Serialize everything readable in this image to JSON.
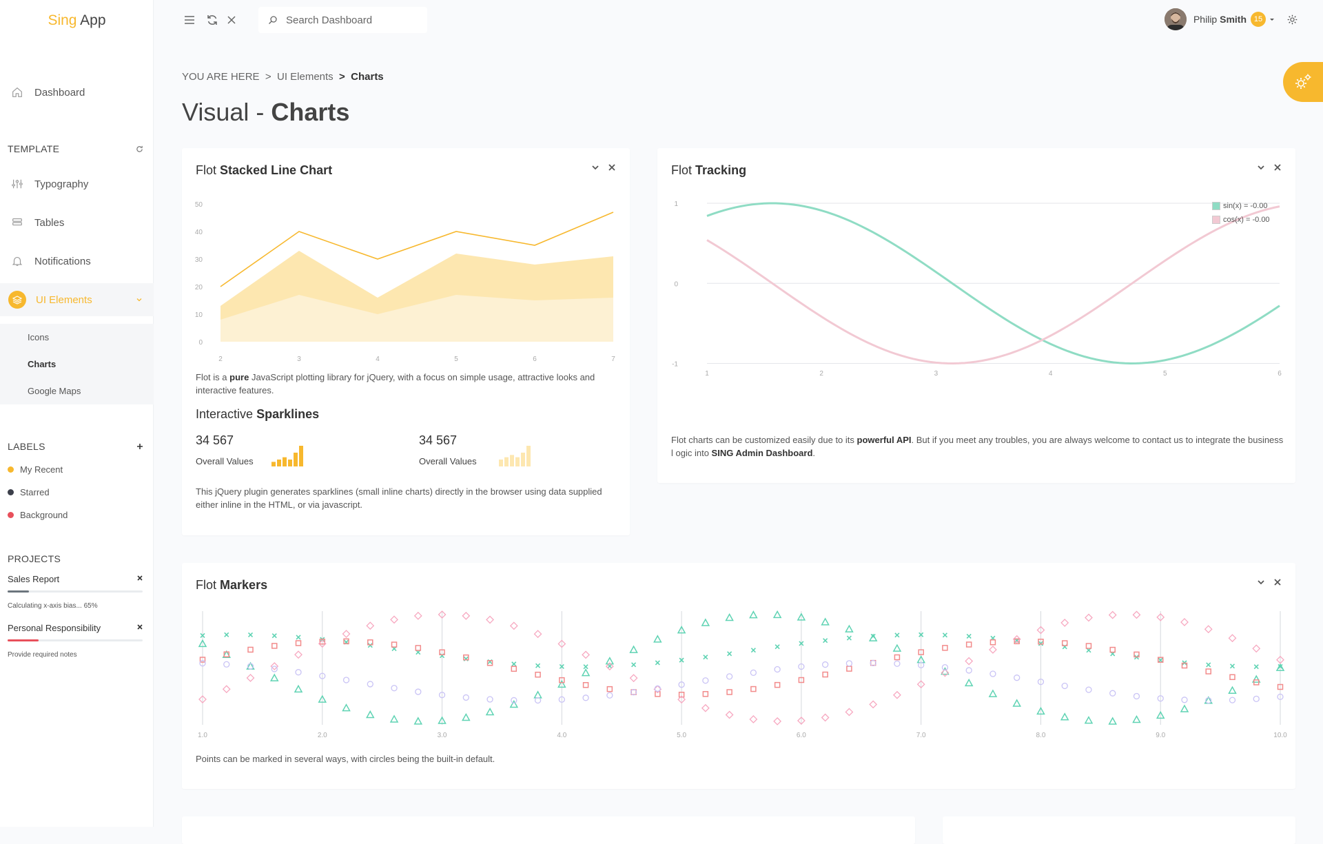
{
  "app": {
    "logo_part1": "Sing",
    "logo_part2": "App"
  },
  "sidebar": {
    "dashboard": "Dashboard",
    "template_header": "TEMPLATE",
    "items": [
      {
        "label": "Typography"
      },
      {
        "label": "Tables"
      },
      {
        "label": "Notifications"
      },
      {
        "label": "UI Elements"
      }
    ],
    "sub_items": [
      {
        "label": "Icons"
      },
      {
        "label": "Charts"
      },
      {
        "label": "Google Maps"
      }
    ],
    "labels_header": "LABELS",
    "labels": [
      {
        "label": "My Recent",
        "color": "#f7b82e"
      },
      {
        "label": "Starred",
        "color": "#3c3f4a"
      },
      {
        "label": "Background",
        "color": "#e8505b"
      }
    ],
    "projects_header": "PROJECTS",
    "projects": [
      {
        "name": "Sales Report",
        "note": "Calculating x-axis bias... 65%",
        "progress": 0.16,
        "color": "#6c757d"
      },
      {
        "name": "Personal Responsibility",
        "note": "Provide required notes",
        "progress": 0.23,
        "color": "#e8505b"
      }
    ]
  },
  "topbar": {
    "search_placeholder": "Search Dashboard",
    "user_first": "Philip",
    "user_last": "Smith",
    "notifications": "15"
  },
  "breadcrumb": {
    "root": "YOU ARE HERE",
    "sep": ">",
    "parent": "UI Elements",
    "current": "Charts"
  },
  "page": {
    "title_light": "Visual -",
    "title_bold": "Charts"
  },
  "stacked": {
    "title_light": "Flot",
    "title_bold": "Stacked Line Chart",
    "desc_a": "Flot is a",
    "desc_b": "pure",
    "desc_c": "JavaScript plotting library for jQuery, with a focus on simple usage, attractive looks and interactive features.",
    "spark_title_light": "Interactive",
    "spark_title_bold": "Sparklines",
    "spark1_value": "34 567",
    "spark1_label": "Overall Values",
    "spark2_value": "34 567",
    "spark2_label": "Overall Values",
    "spark_desc": "This jQuery plugin generates sparklines (small inline charts) directly in the browser using data supplied either inline in the HTML, or via javascript."
  },
  "tracking": {
    "title_light": "Flot",
    "title_bold": "Tracking",
    "legend1": "sin(x) = -0.00",
    "legend2": "cos(x) = -0.00",
    "desc_a": "Flot charts can be customized easily due to its",
    "desc_b": "powerful API",
    "desc_c": ". But if you meet any troubles, you are always welcome to contact us to integrate the business l ogic into",
    "desc_d": "SING Admin Dashboard",
    "desc_e": "."
  },
  "markers": {
    "title_light": "Flot",
    "title_bold": "Markers",
    "desc": "Points can be marked in several ways, with circles being the built-in default."
  },
  "chart_data": [
    {
      "type": "area",
      "x": [
        2,
        3,
        4,
        5,
        6,
        7
      ],
      "xlim": [
        2,
        7
      ],
      "ylim": [
        0,
        50
      ],
      "yticks": [
        0,
        10,
        20,
        30,
        40,
        50
      ],
      "series": [
        {
          "values": [
            8,
            17,
            10,
            17,
            15,
            16
          ],
          "color": "#fdf1d3"
        },
        {
          "values": [
            13,
            33,
            16,
            32,
            28,
            31
          ],
          "color": "#fde7b0"
        },
        {
          "values": [
            20,
            40,
            30,
            40,
            35,
            47
          ],
          "color": "#f7b82e"
        }
      ]
    },
    {
      "type": "bar",
      "values": [
        2,
        3,
        4,
        3,
        6,
        9
      ],
      "color": "#f7b82e"
    },
    {
      "type": "bar",
      "values": [
        3,
        4,
        5,
        4,
        6,
        9
      ],
      "color": "#fde7b0"
    },
    {
      "type": "line",
      "xlim": [
        1,
        6
      ],
      "ylim": [
        -1,
        1
      ],
      "xticks": [
        1,
        2,
        3,
        4,
        5,
        6
      ],
      "yticks": [
        -1,
        0,
        1
      ],
      "series": [
        {
          "fn": "sin",
          "name": "sin(x) = -0.00",
          "color": "#8fdcc4"
        },
        {
          "fn": "cos",
          "name": "cos(x) = -0.00",
          "color": "#f2c9d3"
        }
      ]
    },
    {
      "type": "scatter",
      "xlim": [
        1,
        10
      ],
      "xticks": [
        "1.0",
        "2.0",
        "3.0",
        "4.0",
        "5.0",
        "6.0",
        "7.0",
        "8.0",
        "9.0",
        "10.0"
      ],
      "series": [
        {
          "shape": "triangle",
          "color": "#5fd3b3"
        },
        {
          "shape": "cross",
          "color": "#5fd3b3"
        },
        {
          "shape": "square",
          "color": "#f28b8b"
        },
        {
          "shape": "diamond",
          "color": "#f7a8c0"
        },
        {
          "shape": "circle",
          "color": "#c9c3f5"
        }
      ]
    }
  ]
}
